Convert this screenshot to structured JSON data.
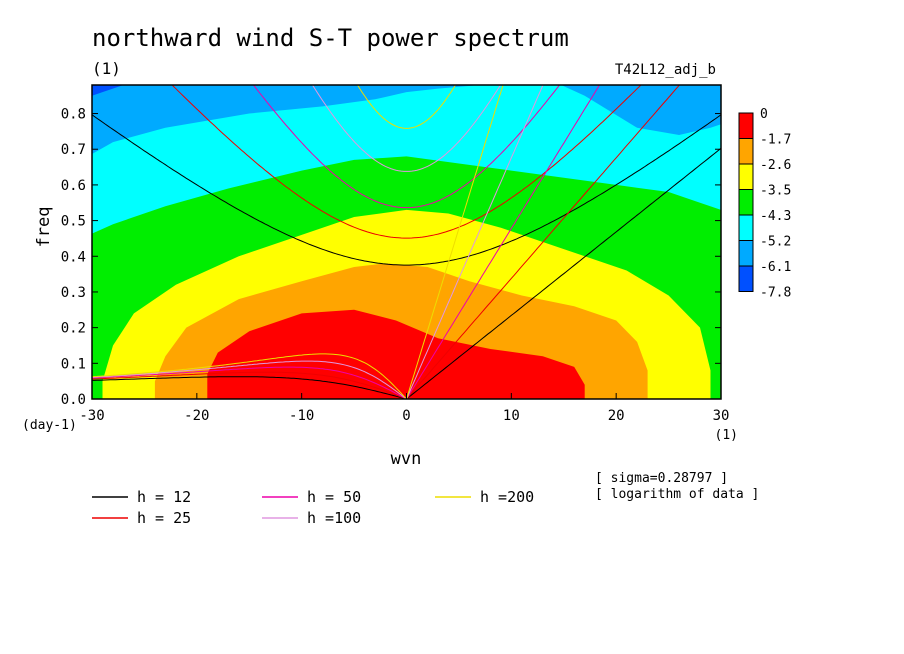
{
  "chart_data": {
    "type": "heatmap",
    "title": "northward wind S-T power spectrum",
    "subtitle_left": "(1)",
    "subtitle_right": "T42L12_adj_b",
    "xlabel": "wvn",
    "ylabel": "freq",
    "x_unit": "(1)",
    "y_unit": "(day-1)",
    "xlim": [
      -30,
      30
    ],
    "ylim": [
      0,
      0.88
    ],
    "xticks": [
      -30,
      -20,
      -10,
      0,
      10,
      20,
      30
    ],
    "yticks": [
      0.0,
      0.1,
      0.2,
      0.3,
      0.4,
      0.5,
      0.6,
      0.7,
      0.8
    ],
    "colorbar": {
      "labels": [
        "0",
        "-1.7",
        "-2.6",
        "-3.5",
        "-4.3",
        "-5.2",
        "-6.1",
        "-7.8"
      ],
      "colors": [
        "#ff0000",
        "#ffa500",
        "#ffff00",
        "#00ee00",
        "#00ffff",
        "#00aaff",
        "#0050ff"
      ]
    },
    "contour_regions": [
      {
        "level": "-1.7 to 0",
        "color": "#ff0000",
        "boundary": [
          [
            -19,
            0
          ],
          [
            -19,
            0.07
          ],
          [
            -18,
            0.13
          ],
          [
            -15,
            0.19
          ],
          [
            -10,
            0.24
          ],
          [
            -5,
            0.25
          ],
          [
            -1,
            0.22
          ],
          [
            3,
            0.17
          ],
          [
            8,
            0.14
          ],
          [
            13,
            0.12
          ],
          [
            16,
            0.09
          ],
          [
            17,
            0.04
          ],
          [
            17,
            0
          ]
        ]
      },
      {
        "level": "-2.6 to -1.7",
        "color": "#ffa500",
        "boundary": [
          [
            -24,
            0
          ],
          [
            -24,
            0.05
          ],
          [
            -23,
            0.12
          ],
          [
            -21,
            0.2
          ],
          [
            -16,
            0.28
          ],
          [
            -10,
            0.33
          ],
          [
            -5,
            0.37
          ],
          [
            -2,
            0.38
          ],
          [
            2,
            0.37
          ],
          [
            6,
            0.33
          ],
          [
            11,
            0.29
          ],
          [
            16,
            0.26
          ],
          [
            20,
            0.22
          ],
          [
            22,
            0.16
          ],
          [
            23,
            0.08
          ],
          [
            23,
            0
          ]
        ]
      },
      {
        "level": "-3.5 to -2.6",
        "color": "#ffff00",
        "boundary": [
          [
            -29,
            0
          ],
          [
            -29,
            0.05
          ],
          [
            -28,
            0.15
          ],
          [
            -26,
            0.24
          ],
          [
            -22,
            0.32
          ],
          [
            -16,
            0.4
          ],
          [
            -10,
            0.46
          ],
          [
            -5,
            0.51
          ],
          [
            0,
            0.53
          ],
          [
            4,
            0.52
          ],
          [
            9,
            0.48
          ],
          [
            15,
            0.42
          ],
          [
            21,
            0.36
          ],
          [
            25,
            0.29
          ],
          [
            28,
            0.2
          ],
          [
            29,
            0.08
          ],
          [
            29,
            0
          ]
        ]
      },
      {
        "level": "-4.3 to -3.5",
        "color": "#00ee00",
        "boundary": [
          [
            -31,
            0
          ],
          [
            -31,
            0.45
          ],
          [
            -28,
            0.49
          ],
          [
            -23,
            0.54
          ],
          [
            -17,
            0.59
          ],
          [
            -10,
            0.64
          ],
          [
            -5,
            0.67
          ],
          [
            0,
            0.68
          ],
          [
            5,
            0.66
          ],
          [
            10,
            0.64
          ],
          [
            15,
            0.62
          ],
          [
            20,
            0.6
          ],
          [
            25,
            0.58
          ],
          [
            28,
            0.55
          ],
          [
            31,
            0.52
          ],
          [
            31,
            0
          ]
        ]
      },
      {
        "level": "-5.2 to -4.3",
        "color": "#00ffff",
        "boundary": [
          [
            -31,
            0
          ],
          [
            -31,
            0.67
          ],
          [
            -28,
            0.72
          ],
          [
            -23,
            0.76
          ],
          [
            -15,
            0.8
          ],
          [
            -8,
            0.82
          ],
          [
            -3,
            0.84
          ],
          [
            0,
            0.86
          ],
          [
            3,
            0.87
          ],
          [
            7,
            0.88
          ],
          [
            14,
            0.89
          ],
          [
            17,
            0.85
          ],
          [
            22,
            0.76
          ],
          [
            26,
            0.74
          ],
          [
            29,
            0.76
          ],
          [
            31,
            0.78
          ],
          [
            31,
            0
          ]
        ]
      },
      {
        "level": "-6.1 to -5.2",
        "color": "#00aaff",
        "boundary": [
          [
            -31,
            0
          ],
          [
            -31,
            0.84
          ],
          [
            -29,
            0.86
          ],
          [
            -27,
            0.88
          ],
          [
            -27,
            0.9
          ],
          [
            31,
            0.9
          ],
          [
            31,
            0.86
          ],
          [
            29,
            0.86
          ],
          [
            27,
            0.88
          ],
          [
            26,
            0.9
          ],
          [
            31,
            0.9
          ],
          [
            31,
            0
          ]
        ]
      }
    ],
    "series": [
      {
        "name": "h = 12",
        "color": "#000000",
        "h": 12
      },
      {
        "name": "h = 25",
        "color": "#ee0000",
        "h": 25
      },
      {
        "name": "h = 50",
        "color": "#ee00aa",
        "h": 50
      },
      {
        "name": "h =100",
        "color": "#e098e0",
        "h": 100
      },
      {
        "name": "h =200",
        "color": "#eedd00",
        "h": 200
      }
    ],
    "annotations": [
      "[ sigma=0.28797 ]",
      "[ logarithm of data ]"
    ]
  }
}
